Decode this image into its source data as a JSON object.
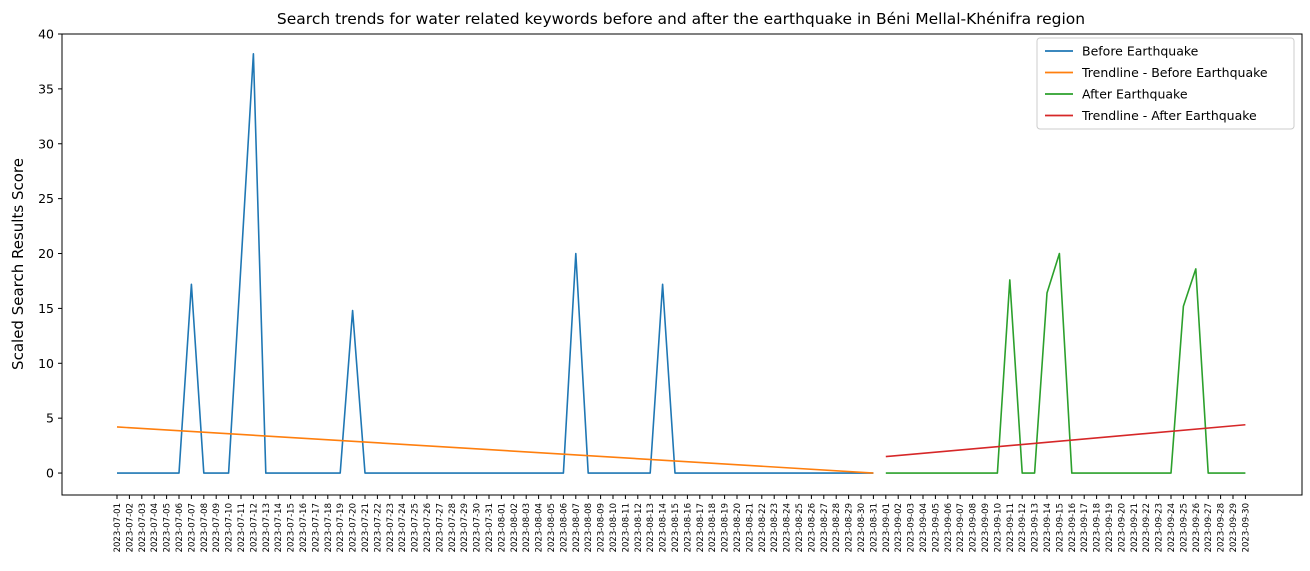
{
  "chart_data": {
    "type": "line",
    "title": "Search trends for water related keywords before and after the earthquake in Béni Mellal-Khénifra region",
    "xlabel": "",
    "ylabel": "Scaled Search Results Score",
    "ylim": [
      -2,
      40
    ],
    "yticks": [
      0,
      5,
      10,
      15,
      20,
      25,
      30,
      35,
      40
    ],
    "grid": false,
    "legend_position": "top-right",
    "x": [
      "2023-07-01",
      "2023-07-02",
      "2023-07-03",
      "2023-07-04",
      "2023-07-05",
      "2023-07-06",
      "2023-07-07",
      "2023-07-08",
      "2023-07-09",
      "2023-07-10",
      "2023-07-11",
      "2023-07-12",
      "2023-07-13",
      "2023-07-14",
      "2023-07-15",
      "2023-07-16",
      "2023-07-17",
      "2023-07-18",
      "2023-07-19",
      "2023-07-20",
      "2023-07-21",
      "2023-07-22",
      "2023-07-23",
      "2023-07-24",
      "2023-07-25",
      "2023-07-26",
      "2023-07-27",
      "2023-07-28",
      "2023-07-29",
      "2023-07-30",
      "2023-07-31",
      "2023-08-01",
      "2023-08-02",
      "2023-08-03",
      "2023-08-04",
      "2023-08-05",
      "2023-08-06",
      "2023-08-07",
      "2023-08-08",
      "2023-08-09",
      "2023-08-10",
      "2023-08-11",
      "2023-08-12",
      "2023-08-13",
      "2023-08-14",
      "2023-08-15",
      "2023-08-16",
      "2023-08-17",
      "2023-08-18",
      "2023-08-19",
      "2023-08-20",
      "2023-08-21",
      "2023-08-22",
      "2023-08-23",
      "2023-08-24",
      "2023-08-25",
      "2023-08-26",
      "2023-08-27",
      "2023-08-28",
      "2023-08-29",
      "2023-08-30",
      "2023-08-31",
      "2023-09-01",
      "2023-09-02",
      "2023-09-03",
      "2023-09-04",
      "2023-09-05",
      "2023-09-06",
      "2023-09-07",
      "2023-09-08",
      "2023-09-09",
      "2023-09-10",
      "2023-09-11",
      "2023-09-12",
      "2023-09-13",
      "2023-09-14",
      "2023-09-15",
      "2023-09-16",
      "2023-09-17",
      "2023-09-18",
      "2023-09-19",
      "2023-09-20",
      "2023-09-21",
      "2023-09-22",
      "2023-09-23",
      "2023-09-24",
      "2023-09-25",
      "2023-09-26",
      "2023-09-27",
      "2023-09-28",
      "2023-09-29",
      "2023-09-30"
    ],
    "series": [
      {
        "name": "Before Earthquake",
        "color": "#1f77b4",
        "x": [
          "2023-07-01",
          "2023-07-02",
          "2023-07-03",
          "2023-07-04",
          "2023-07-05",
          "2023-07-06",
          "2023-07-07",
          "2023-07-08",
          "2023-07-09",
          "2023-07-10",
          "2023-07-11",
          "2023-07-12",
          "2023-07-13",
          "2023-07-14",
          "2023-07-15",
          "2023-07-16",
          "2023-07-17",
          "2023-07-18",
          "2023-07-19",
          "2023-07-20",
          "2023-07-21",
          "2023-07-22",
          "2023-07-23",
          "2023-07-24",
          "2023-07-25",
          "2023-07-26",
          "2023-07-27",
          "2023-07-28",
          "2023-07-29",
          "2023-07-30",
          "2023-07-31",
          "2023-08-01",
          "2023-08-02",
          "2023-08-03",
          "2023-08-04",
          "2023-08-05",
          "2023-08-06",
          "2023-08-07",
          "2023-08-08",
          "2023-08-09",
          "2023-08-10",
          "2023-08-11",
          "2023-08-12",
          "2023-08-13",
          "2023-08-14",
          "2023-08-15",
          "2023-08-16",
          "2023-08-17",
          "2023-08-18",
          "2023-08-19",
          "2023-08-20",
          "2023-08-21",
          "2023-08-22",
          "2023-08-23",
          "2023-08-24",
          "2023-08-25",
          "2023-08-26",
          "2023-08-27",
          "2023-08-28",
          "2023-08-29",
          "2023-08-30",
          "2023-08-31"
        ],
        "values": [
          0,
          0,
          0,
          0,
          0,
          0,
          17.2,
          0,
          0,
          0,
          19,
          38.2,
          0,
          0,
          0,
          0,
          0,
          0,
          0,
          14.8,
          0,
          0,
          0,
          0,
          0,
          0,
          0,
          0,
          0,
          0,
          0,
          0,
          0,
          0,
          0,
          0,
          0,
          20,
          0,
          0,
          0,
          0,
          0,
          0,
          17.2,
          0,
          0,
          0,
          0,
          0,
          0,
          0,
          0,
          0,
          0,
          0,
          0,
          0,
          0,
          0,
          0,
          0
        ]
      },
      {
        "name": "Trendline - Before Earthquake",
        "color": "#ff7f0e",
        "x": [
          "2023-07-01",
          "2023-08-31"
        ],
        "values": [
          4.2,
          0
        ]
      },
      {
        "name": "After Earthquake",
        "color": "#2ca02c",
        "x": [
          "2023-09-01",
          "2023-09-02",
          "2023-09-03",
          "2023-09-04",
          "2023-09-05",
          "2023-09-06",
          "2023-09-07",
          "2023-09-08",
          "2023-09-09",
          "2023-09-10",
          "2023-09-11",
          "2023-09-12",
          "2023-09-13",
          "2023-09-14",
          "2023-09-15",
          "2023-09-16",
          "2023-09-17",
          "2023-09-18",
          "2023-09-19",
          "2023-09-20",
          "2023-09-21",
          "2023-09-22",
          "2023-09-23",
          "2023-09-24",
          "2023-09-25",
          "2023-09-26",
          "2023-09-27",
          "2023-09-28",
          "2023-09-29",
          "2023-09-30"
        ],
        "values": [
          0,
          0,
          0,
          0,
          0,
          0,
          0,
          0,
          0,
          0,
          17.6,
          0,
          0,
          16.4,
          20,
          0,
          0,
          0,
          0,
          0,
          0,
          0,
          0,
          0,
          15.2,
          18.6,
          0,
          0,
          0,
          0
        ]
      },
      {
        "name": "Trendline - After Earthquake",
        "color": "#d62728",
        "x": [
          "2023-09-01",
          "2023-09-30"
        ],
        "values": [
          1.5,
          4.4
        ]
      }
    ]
  }
}
